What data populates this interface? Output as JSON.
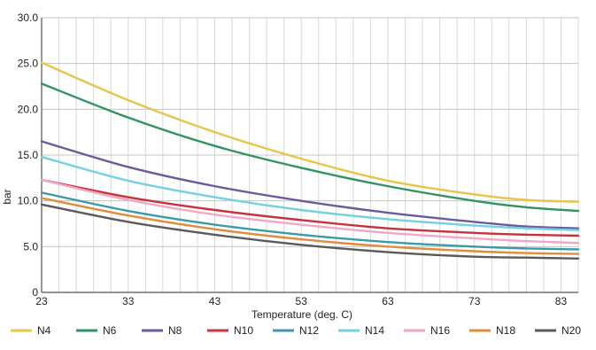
{
  "chart_data": {
    "type": "line",
    "title": "",
    "xlabel": "Temperature (deg. C)",
    "ylabel": "bar",
    "xlim": [
      23,
      85
    ],
    "ylim": [
      0,
      30
    ],
    "x_ticks": [
      23,
      33,
      43,
      53,
      63,
      73,
      83
    ],
    "x_tick_labels": [
      "23",
      "33",
      "43",
      "53",
      "63",
      "73",
      "83"
    ],
    "y_ticks": [
      0,
      5,
      10,
      15,
      20,
      25,
      30
    ],
    "y_tick_labels": [
      "0",
      "5.0",
      "10.0",
      "15.0",
      "20.0",
      "25.0",
      "30.0"
    ],
    "x_minor_grid_step": 2,
    "grid": true,
    "legend_position": "bottom",
    "x": [
      23,
      33,
      43,
      53,
      63,
      73,
      79,
      85
    ],
    "series": [
      {
        "name": "N4",
        "color": "#e8c44a",
        "values": [
          25.1,
          21.0,
          17.5,
          14.6,
          12.2,
          10.7,
          10.1,
          9.9
        ]
      },
      {
        "name": "N6",
        "color": "#2f9462",
        "values": [
          22.8,
          19.1,
          16.0,
          13.6,
          11.6,
          10.0,
          9.3,
          8.9
        ]
      },
      {
        "name": "N8",
        "color": "#6b5a9e",
        "values": [
          16.5,
          13.7,
          11.6,
          10.0,
          8.7,
          7.7,
          7.2,
          7.0
        ]
      },
      {
        "name": "N10",
        "color": "#c8323c",
        "values": [
          12.3,
          10.4,
          9.0,
          7.9,
          7.0,
          6.5,
          6.3,
          6.2
        ]
      },
      {
        "name": "N12",
        "color": "#3b9aa6",
        "values": [
          10.9,
          8.9,
          7.4,
          6.3,
          5.5,
          5.0,
          4.8,
          4.7
        ]
      },
      {
        "name": "N14",
        "color": "#74d0e2",
        "values": [
          14.8,
          12.2,
          10.4,
          9.0,
          8.0,
          7.3,
          7.0,
          6.8
        ]
      },
      {
        "name": "N16",
        "color": "#f0a8c4",
        "values": [
          12.3,
          10.1,
          8.5,
          7.4,
          6.5,
          5.9,
          5.6,
          5.4
        ]
      },
      {
        "name": "N18",
        "color": "#e08c3a",
        "values": [
          10.3,
          8.4,
          6.9,
          5.8,
          5.0,
          4.5,
          4.3,
          4.2
        ]
      },
      {
        "name": "N20",
        "color": "#5a5a5a",
        "values": [
          9.6,
          7.7,
          6.3,
          5.2,
          4.4,
          3.9,
          3.8,
          3.7
        ]
      }
    ]
  }
}
